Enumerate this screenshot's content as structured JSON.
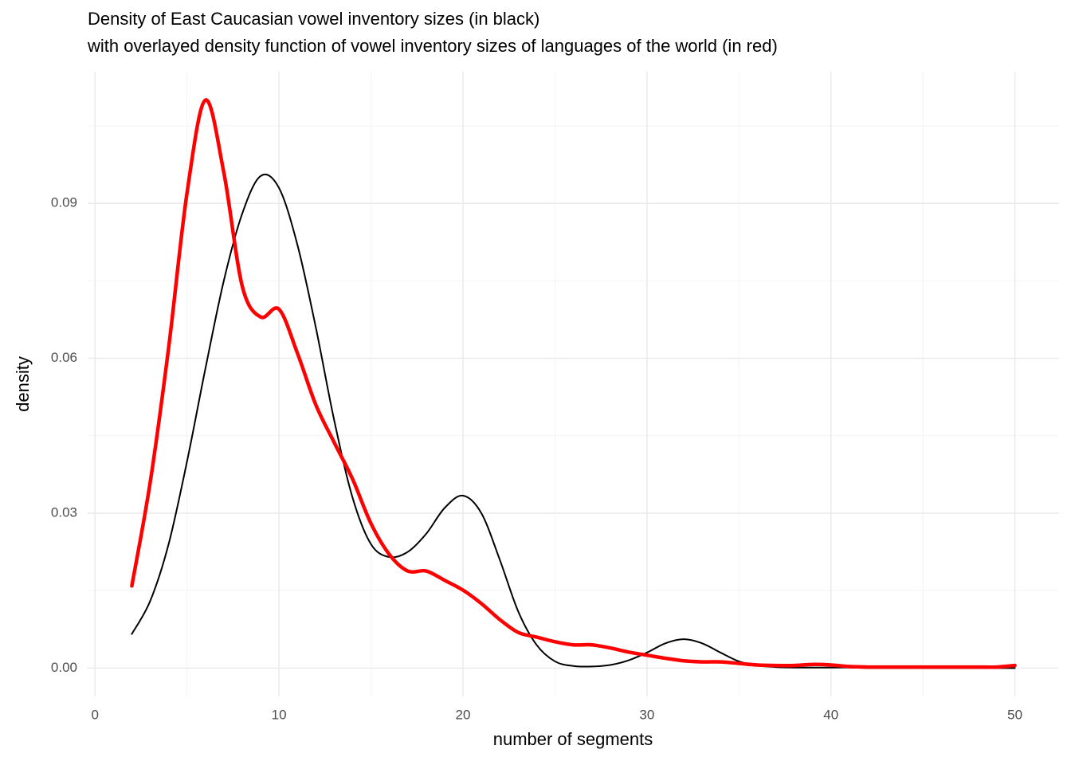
{
  "chart_data": {
    "type": "line",
    "title": "Density of East Caucasian vowel inventory sizes (in black)",
    "subtitle": "with overlayed density function of vowel inventory sizes of languages of the world (in red)",
    "x_label": "number of segments",
    "y_label": "density",
    "x": [
      2,
      3,
      4,
      5,
      6,
      7,
      8,
      9,
      10,
      11,
      12,
      13,
      14,
      15,
      16,
      17,
      18,
      19,
      20,
      21,
      22,
      23,
      24,
      25,
      26,
      27,
      28,
      29,
      30,
      31,
      32,
      33,
      34,
      35,
      36,
      37,
      38,
      39,
      40,
      41,
      42,
      43,
      44,
      45,
      46,
      47,
      48,
      49,
      50
    ],
    "series": [
      {
        "color": "#000000",
        "values": [
          0.0066,
          0.013,
          0.024,
          0.04,
          0.058,
          0.075,
          0.088,
          0.0953,
          0.093,
          0.082,
          0.066,
          0.048,
          0.033,
          0.024,
          0.0215,
          0.0225,
          0.026,
          0.031,
          0.0334,
          0.03,
          0.021,
          0.011,
          0.0045,
          0.0013,
          0.0004,
          0.0003,
          0.0006,
          0.0015,
          0.003,
          0.0048,
          0.0056,
          0.0048,
          0.003,
          0.0013,
          0.0005,
          0.0002,
          0.0001,
          0.0001,
          0.0001,
          0.0001,
          0,
          0,
          0,
          0,
          0,
          0,
          0,
          0,
          0
        ]
      },
      {
        "color": "#ff0000",
        "values": [
          0.0159,
          0.036,
          0.062,
          0.092,
          0.11,
          0.096,
          0.074,
          0.068,
          0.0695,
          0.061,
          0.051,
          0.0437,
          0.0366,
          0.028,
          0.022,
          0.0188,
          0.0188,
          0.017,
          0.0151,
          0.0125,
          0.0094,
          0.0069,
          0.006,
          0.0051,
          0.0045,
          0.0045,
          0.0039,
          0.0031,
          0.0025,
          0.0019,
          0.0014,
          0.0012,
          0.0012,
          0.0009,
          0.0006,
          0.0005,
          0.0005,
          0.0007,
          0.0006,
          0.0003,
          0.0002,
          0.0002,
          0.0002,
          0.0002,
          0.0002,
          0.0002,
          0.0002,
          0.0002,
          0.0005
        ]
      }
    ],
    "xlim": [
      -0.4,
      52.4
    ],
    "xticks": [
      0,
      10,
      20,
      30,
      40,
      50
    ],
    "ylim": [
      -0.0055,
      0.1155
    ],
    "yticks": [
      {
        "value": 0,
        "label": "0.00"
      },
      0.03,
      0.06,
      0.09
    ],
    "grid": true
  }
}
